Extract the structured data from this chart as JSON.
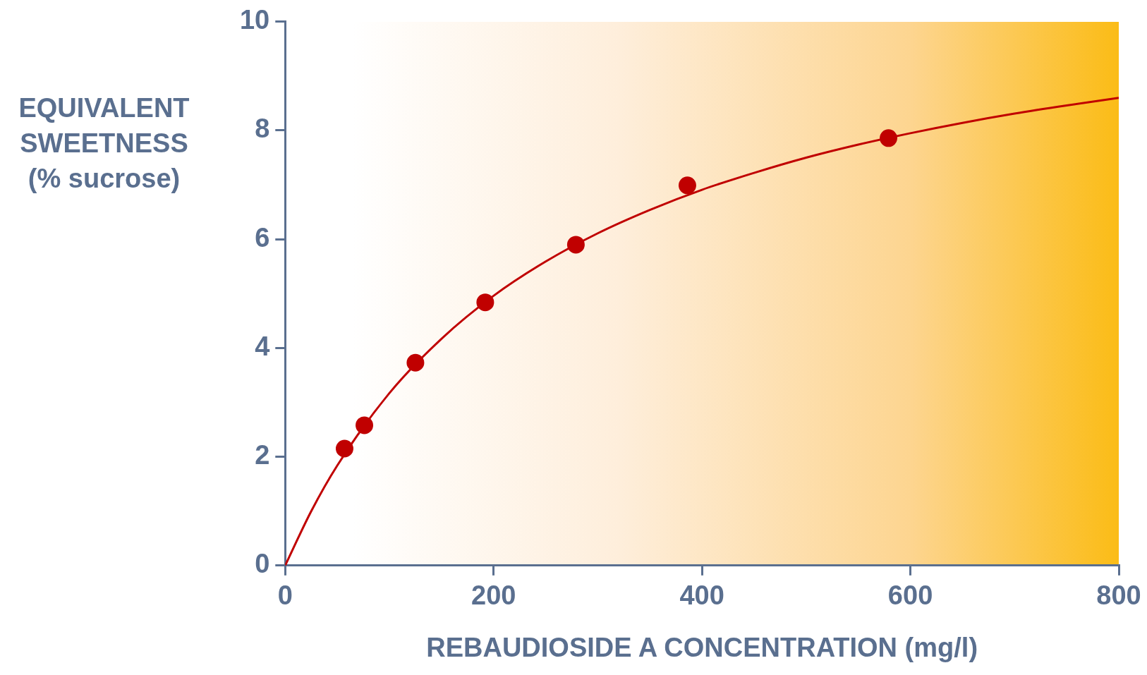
{
  "chart_data": {
    "type": "scatter",
    "xlabel": "REBAUDIOSIDE A CONCENTRATION (mg/l)",
    "ylabel": "EQUIVALENT SWEETNESS (% sucrose)",
    "xlim": [
      0,
      800
    ],
    "xticks": [
      0,
      200,
      400,
      600,
      800
    ],
    "ylim": [
      0,
      10
    ],
    "yticks": [
      0,
      2,
      4,
      6,
      8,
      10
    ],
    "grid": false,
    "legend": false,
    "marker": "circle",
    "series": [
      {
        "type": "scatter",
        "color": "#c00000",
        "x": [
          57,
          76,
          125,
          192,
          279,
          386,
          579
        ],
        "values": [
          2.15,
          2.58,
          3.73,
          4.84,
          5.9,
          6.99,
          7.86
        ]
      },
      {
        "type": "line",
        "color": "#c00000",
        "marker": "none",
        "line_style": "solid",
        "x": [
          0,
          25,
          50,
          100,
          150,
          200,
          250,
          300,
          350,
          400,
          450,
          500,
          550,
          600,
          650,
          700,
          750,
          800
        ],
        "values": [
          0,
          1.0,
          1.84,
          3.17,
          4.17,
          4.96,
          5.59,
          6.11,
          6.54,
          6.91,
          7.22,
          7.5,
          7.74,
          7.95,
          8.14,
          8.31,
          8.46,
          8.6
        ]
      }
    ]
  }
}
